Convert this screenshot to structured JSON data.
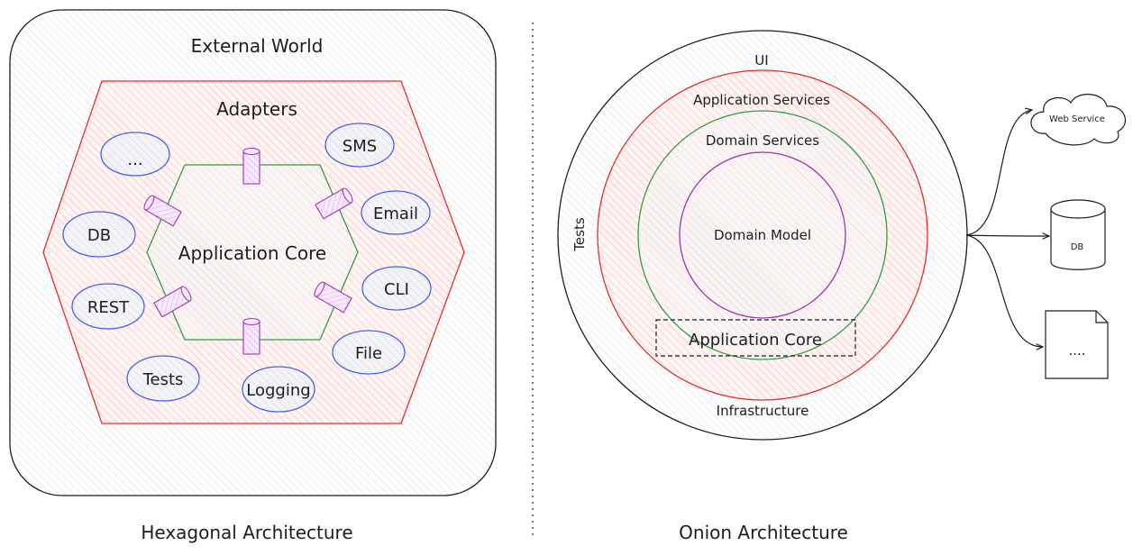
{
  "hexagonal": {
    "caption": "Hexagonal Architecture",
    "outer_label": "External World",
    "adapters_label": "Adapters",
    "core_label": "Application Core",
    "adapters": {
      "ellipsis": "...",
      "sms": "SMS",
      "db": "DB",
      "email": "Email",
      "rest": "REST",
      "cli": "CLI",
      "file": "File",
      "tests": "Tests",
      "logging": "Logging"
    }
  },
  "onion": {
    "caption": "Onion Architecture",
    "ui_label": "UI",
    "tests_label": "Tests",
    "infrastructure_label": "Infrastructure",
    "application_services_label": "Application Services",
    "domain_services_label": "Domain Services",
    "domain_model_label": "Domain Model",
    "application_core_label": "Application Core",
    "external": {
      "web_service": "Web Service",
      "db": "DB",
      "doc": "...."
    }
  },
  "colors": {
    "stroke": "#1e1e1e",
    "red": "#e03131",
    "red_fill": "#ffc9c9",
    "green": "#2f9e44",
    "blue": "#4263eb",
    "blue_fill": "#e9ecef",
    "purple": "#9c36b5",
    "purple_fill": "#eebefa"
  }
}
